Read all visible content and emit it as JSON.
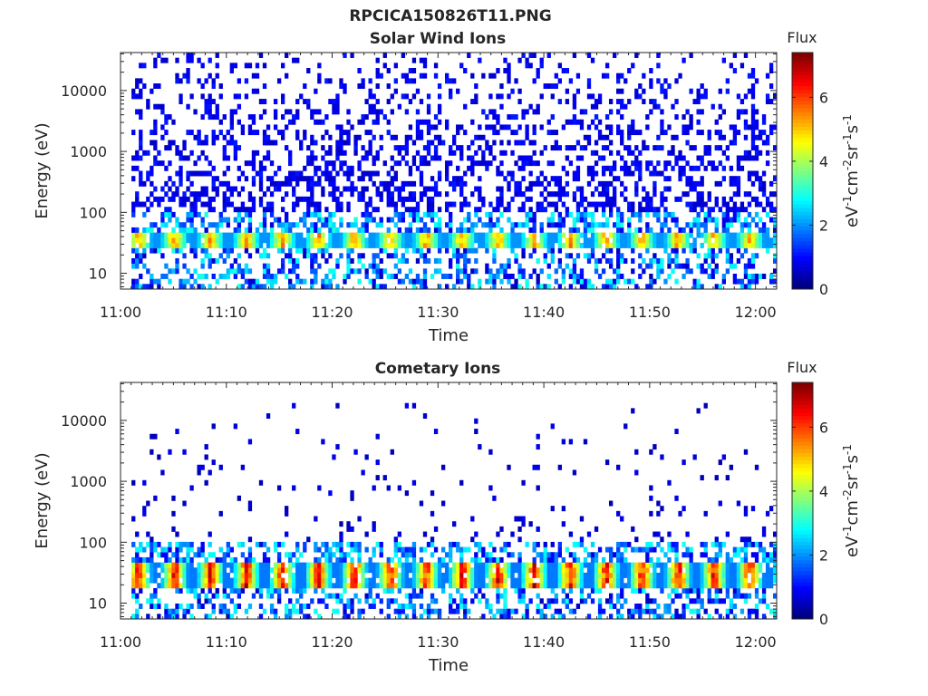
{
  "figure": {
    "title": "RPCICA150826T11.PNG"
  },
  "chart_data": [
    {
      "type": "heatmap",
      "title": "Solar Wind Ions",
      "xlabel": "Time",
      "ylabel": "Energy (eV)",
      "x_ticks": [
        "11:00",
        "11:10",
        "11:20",
        "11:30",
        "11:40",
        "11:50",
        "12:00"
      ],
      "x_range_minutes": [
        0,
        62
      ],
      "y_scale": "log",
      "y_ticks": [
        10,
        100,
        1000,
        10000
      ],
      "y_tick_labels": [
        "10",
        "100",
        "1000",
        "10000"
      ],
      "ylim": [
        5.5,
        42000
      ],
      "colorbar": {
        "title": "Flux",
        "label": "eV-1cm-2sr-1s-1",
        "ticks": [
          0,
          2,
          4,
          6
        ],
        "range": [
          0,
          7.4
        ],
        "colormap": "jet"
      },
      "features": {
        "main_band_energy_eV": [
          25,
          45
        ],
        "main_band_peak_flux": 5.2,
        "background_flux": 0.8,
        "sparse_upto_eV": 40000,
        "periodicity_minutes": 3.4
      }
    },
    {
      "type": "heatmap",
      "title": "Cometary Ions",
      "xlabel": "Time",
      "ylabel": "Energy (eV)",
      "x_ticks": [
        "11:00",
        "11:10",
        "11:20",
        "11:30",
        "11:40",
        "11:50",
        "12:00"
      ],
      "x_range_minutes": [
        0,
        62
      ],
      "y_scale": "log",
      "y_ticks": [
        10,
        100,
        1000,
        10000
      ],
      "y_tick_labels": [
        "10",
        "100",
        "1000",
        "10000"
      ],
      "ylim": [
        5.5,
        42000
      ],
      "colorbar": {
        "title": "Flux",
        "label": "eV-1cm-2sr-1s-1",
        "ticks": [
          0,
          2,
          4,
          6
        ],
        "range": [
          0,
          7.4
        ],
        "colormap": "jet"
      },
      "features": {
        "main_band_energy_eV": [
          18,
          45
        ],
        "main_band_peak_flux": 6.8,
        "background_flux": 0.6,
        "sparse_upto_eV": 20000,
        "periodicity_minutes": 3.4
      }
    }
  ]
}
